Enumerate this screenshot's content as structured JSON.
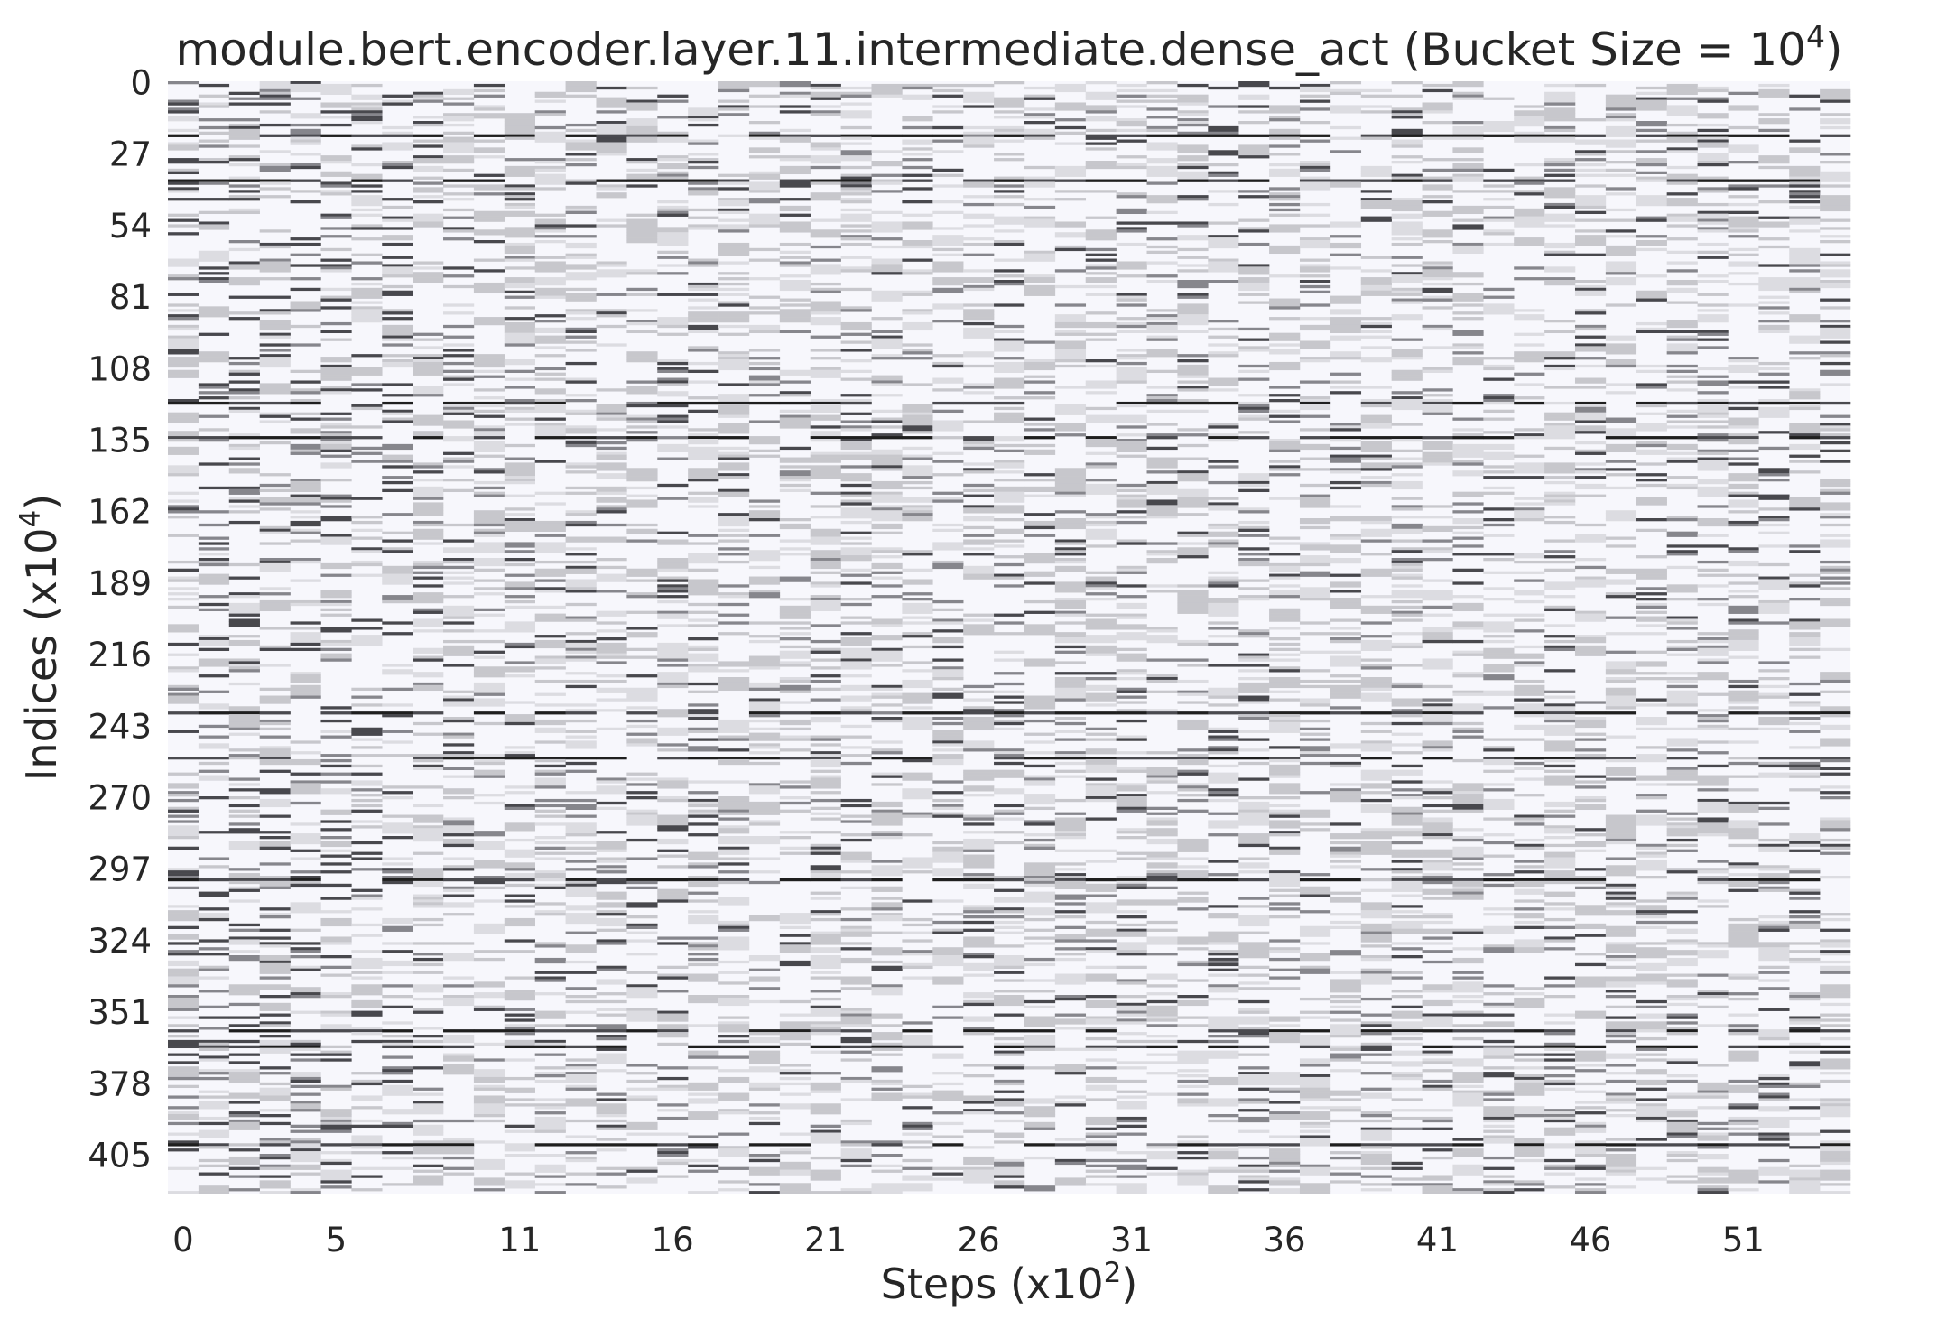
{
  "chart_data": {
    "type": "heatmap",
    "title_main": "module.bert.encoder.layer.11.intermediate.dense_act (Bucket Size = 10",
    "title_exp": "4",
    "title_close": ")",
    "xlabel_main": "Steps (x10",
    "xlabel_exp": "2",
    "xlabel_close": ")",
    "ylabel_main": "Indices (x10",
    "ylabel_exp": "4",
    "ylabel_close": ")",
    "x_ticks": [
      "0",
      "5",
      "11",
      "16",
      "21",
      "26",
      "31",
      "36",
      "41",
      "46",
      "51"
    ],
    "y_ticks": [
      "0",
      "27",
      "54",
      "81",
      "108",
      "135",
      "162",
      "189",
      "216",
      "243",
      "270",
      "297",
      "324",
      "351",
      "378",
      "405"
    ],
    "n_steps": 55,
    "n_indices": 420,
    "colormap": {
      "low": "#f7f7fc",
      "mid": "#c8c8cc",
      "high": "#1a1a1a"
    },
    "background": "#f7f7fc",
    "prominent_rows": [
      20,
      37,
      121,
      134,
      238,
      255,
      301,
      358,
      364,
      401
    ]
  }
}
